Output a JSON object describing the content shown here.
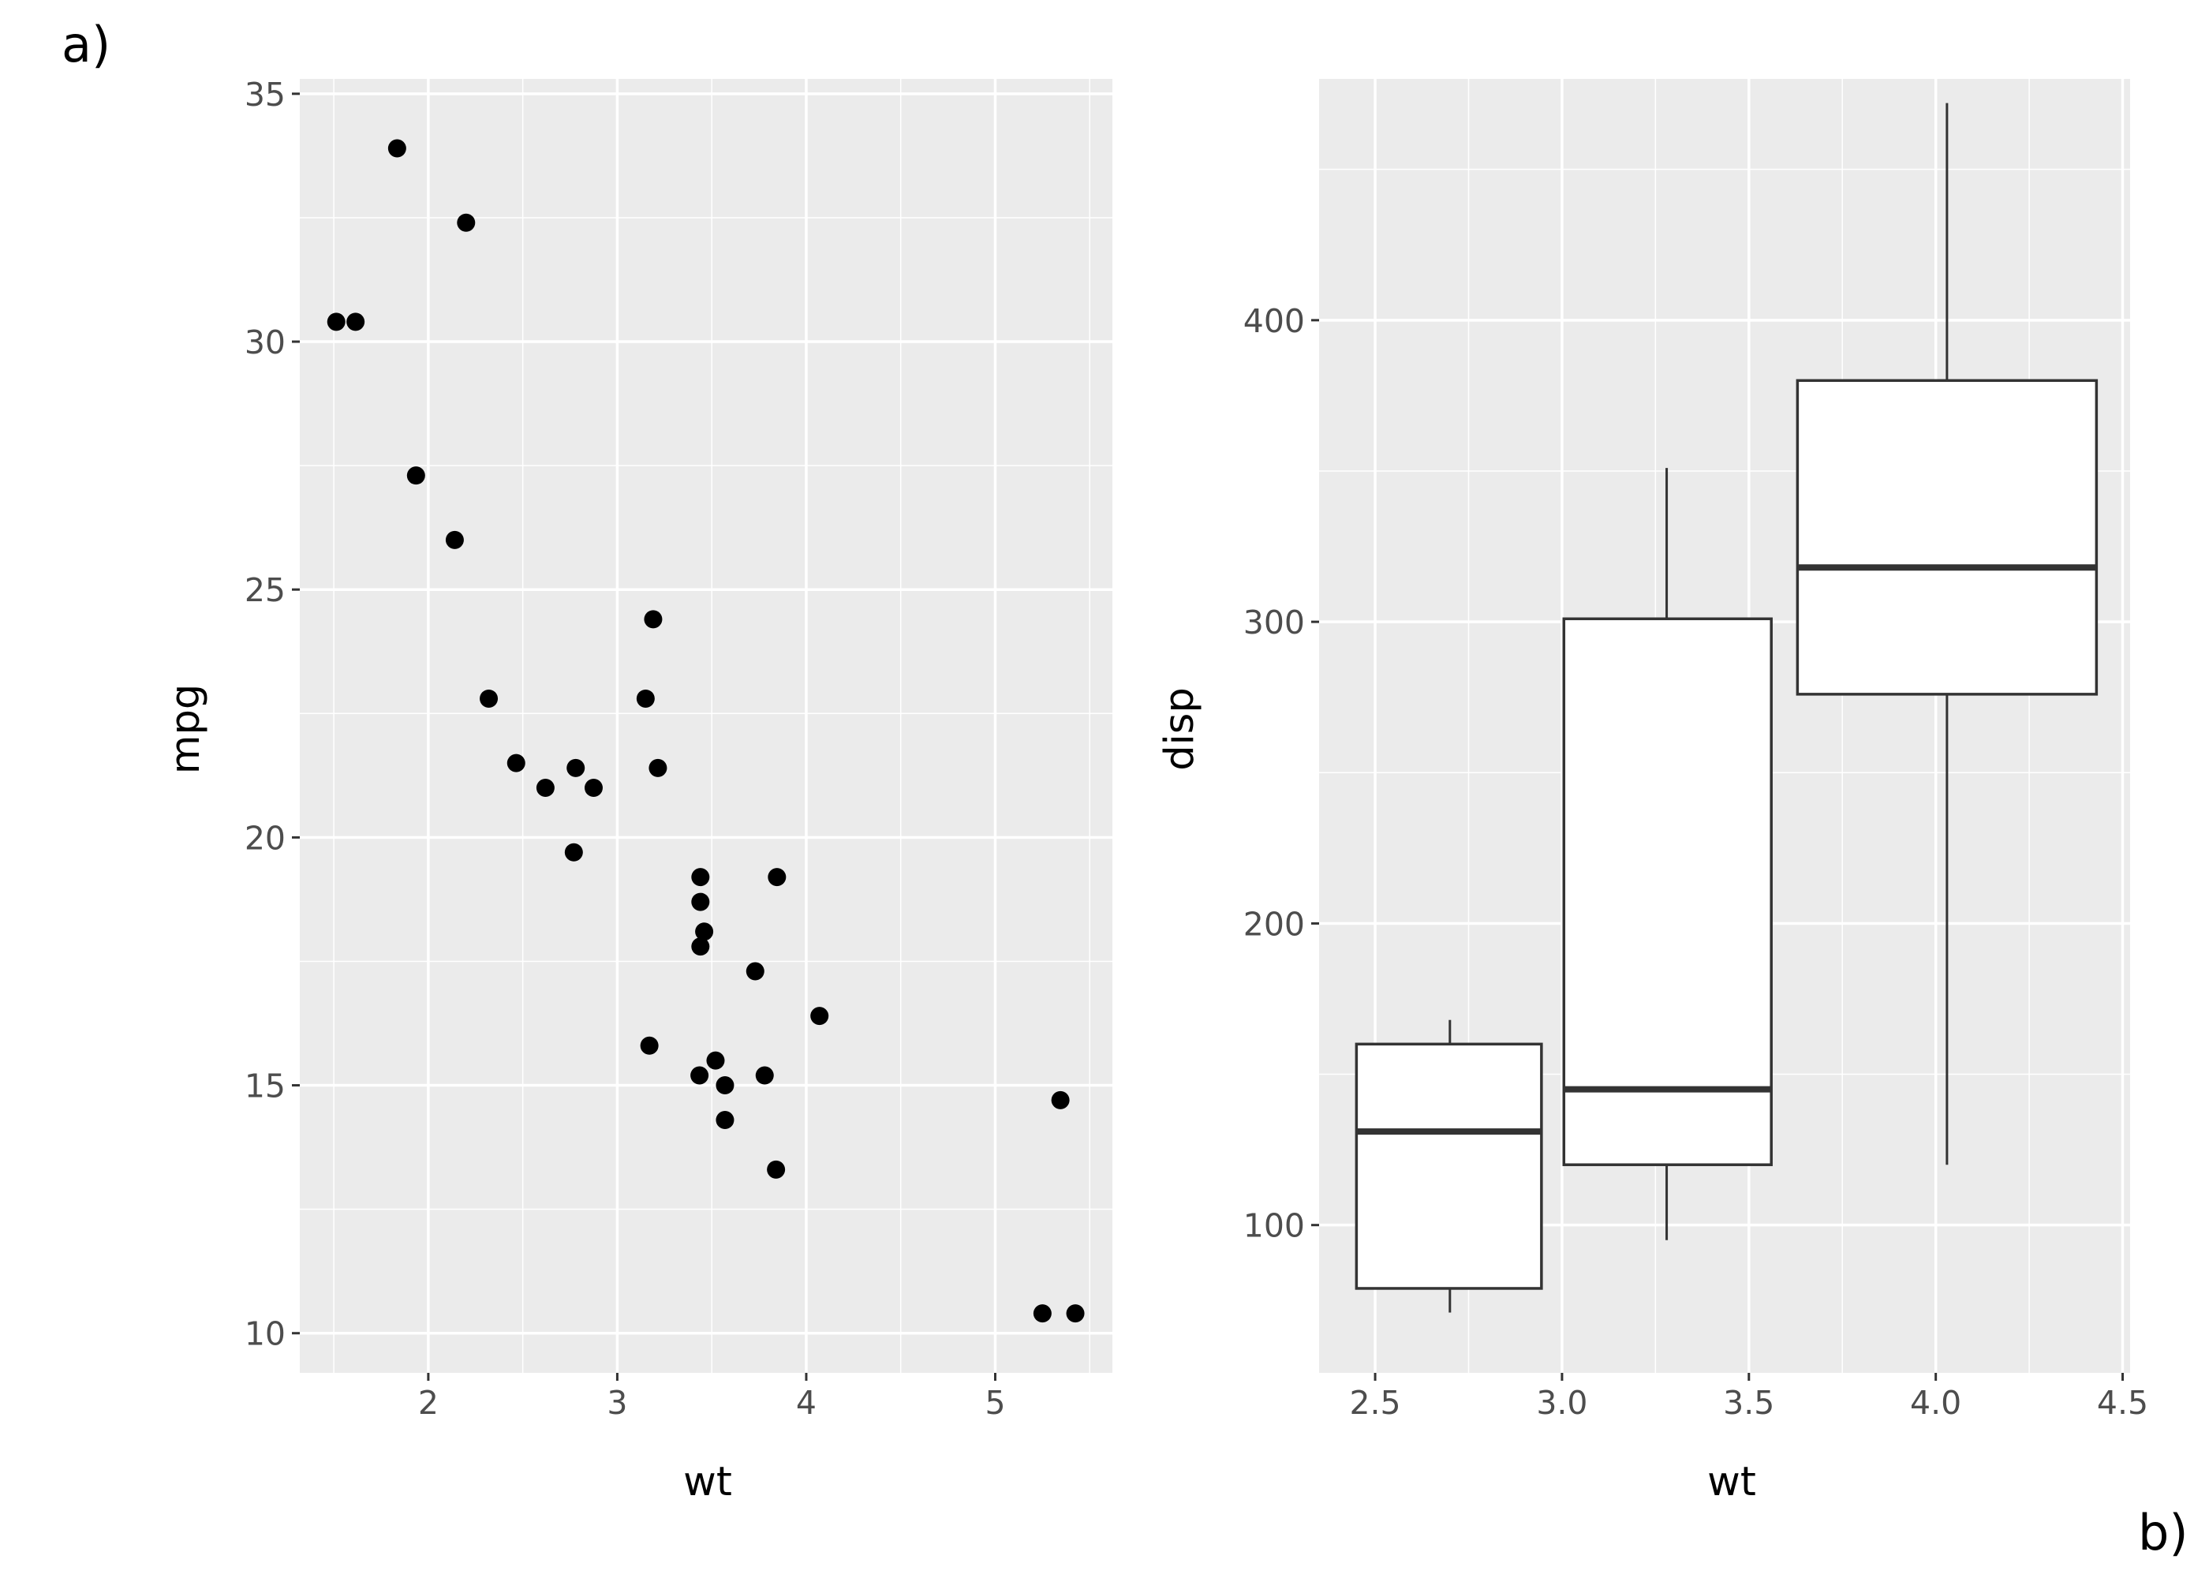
{
  "chart_data": [
    {
      "tag": "a)",
      "type": "scatter",
      "xlabel": "wt",
      "ylabel": "mpg",
      "xlim": [
        1.32,
        5.62
      ],
      "ylim": [
        9.2,
        35.3
      ],
      "x_major_ticks": [
        2,
        3,
        4,
        5
      ],
      "x_minor_ticks": [
        1.5,
        2.5,
        3.5,
        4.5,
        5.5
      ],
      "y_major_ticks": [
        10,
        15,
        20,
        25,
        30,
        35
      ],
      "y_minor_ticks": [
        12.5,
        17.5,
        22.5,
        27.5,
        32.5
      ],
      "x_tick_labels": [
        "2",
        "3",
        "4",
        "5"
      ],
      "y_tick_labels": [
        "10",
        "15",
        "20",
        "25",
        "30",
        "35"
      ],
      "grid": true,
      "point_color": "#000000",
      "points": [
        {
          "x": 1.513,
          "y": 30.4
        },
        {
          "x": 1.615,
          "y": 30.4
        },
        {
          "x": 1.835,
          "y": 33.9
        },
        {
          "x": 1.935,
          "y": 27.3
        },
        {
          "x": 2.14,
          "y": 26.0
        },
        {
          "x": 2.2,
          "y": 32.4
        },
        {
          "x": 2.32,
          "y": 22.8
        },
        {
          "x": 2.465,
          "y": 21.5
        },
        {
          "x": 2.62,
          "y": 21.0
        },
        {
          "x": 2.77,
          "y": 19.7
        },
        {
          "x": 2.78,
          "y": 21.4
        },
        {
          "x": 2.875,
          "y": 21.0
        },
        {
          "x": 3.15,
          "y": 22.8
        },
        {
          "x": 3.17,
          "y": 15.8
        },
        {
          "x": 3.19,
          "y": 24.4
        },
        {
          "x": 3.215,
          "y": 21.4
        },
        {
          "x": 3.435,
          "y": 15.2
        },
        {
          "x": 3.44,
          "y": 18.7
        },
        {
          "x": 3.44,
          "y": 19.2
        },
        {
          "x": 3.44,
          "y": 17.8
        },
        {
          "x": 3.46,
          "y": 18.1
        },
        {
          "x": 3.52,
          "y": 15.5
        },
        {
          "x": 3.57,
          "y": 14.3
        },
        {
          "x": 3.57,
          "y": 15.0
        },
        {
          "x": 3.73,
          "y": 17.3
        },
        {
          "x": 3.78,
          "y": 15.2
        },
        {
          "x": 3.84,
          "y": 13.3
        },
        {
          "x": 3.845,
          "y": 19.2
        },
        {
          "x": 4.07,
          "y": 16.4
        },
        {
          "x": 5.25,
          "y": 10.4
        },
        {
          "x": 5.345,
          "y": 14.7
        },
        {
          "x": 5.424,
          "y": 10.4
        }
      ]
    },
    {
      "tag": "b)",
      "type": "boxplot",
      "xlabel": "wt",
      "ylabel": "disp",
      "xlim": [
        2.35,
        4.52
      ],
      "ylim": [
        51,
        480
      ],
      "x_major_ticks": [
        2.5,
        3.0,
        3.5,
        4.0,
        4.5
      ],
      "x_minor_ticks": [
        2.75,
        3.25,
        3.75,
        4.25
      ],
      "y_major_ticks": [
        100,
        200,
        300,
        400
      ],
      "y_minor_ticks": [
        150,
        250,
        350,
        450
      ],
      "x_tick_labels": [
        "2.5",
        "3.0",
        "3.5",
        "4.0",
        "4.5"
      ],
      "y_tick_labels": [
        "100",
        "200",
        "300",
        "400"
      ],
      "grid": true,
      "box_fill": "#ffffff",
      "box_stroke": "#333333",
      "boxes": [
        {
          "x": 2.7,
          "xmin": 2.45,
          "xmax": 2.945,
          "lower": 71,
          "q1": 79,
          "median": 131,
          "q3": 160,
          "upper": 168
        },
        {
          "x": 3.28,
          "xmin": 3.005,
          "xmax": 3.56,
          "lower": 95,
          "q1": 120,
          "median": 145,
          "q3": 301,
          "upper": 351
        },
        {
          "x": 4.03,
          "xmin": 3.63,
          "xmax": 4.43,
          "lower": 120,
          "q1": 276,
          "median": 318,
          "q3": 380,
          "upper": 472
        }
      ]
    }
  ],
  "colors": {
    "panel_background": "#ebebeb",
    "grid_major": "#ffffff",
    "tick_mark": "#333333",
    "tick_text": "#4d4d4d",
    "title_text": "#000000"
  }
}
